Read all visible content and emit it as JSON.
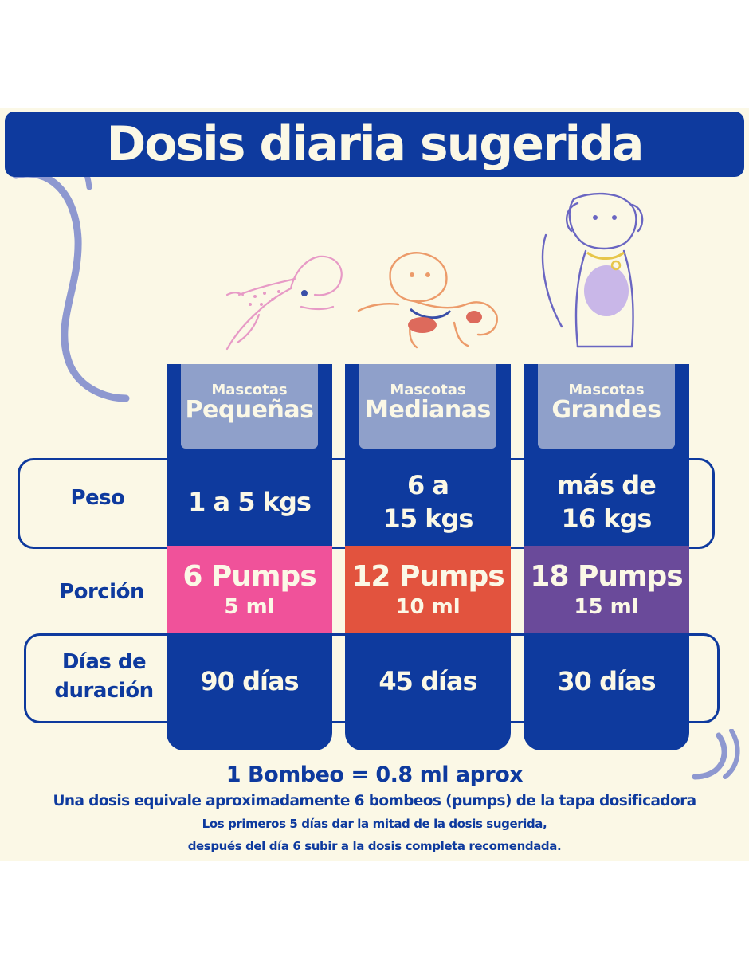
{
  "title": "Dosis diaria sugerida",
  "rows": {
    "weight": "Peso",
    "portion": "Porción",
    "duration_line1": "Días de",
    "duration_line2": "duración"
  },
  "columns": [
    {
      "head_small": "Mascotas",
      "head_big": "Pequeñas",
      "weight_line1": "1 a 5 kgs",
      "weight_line2": "",
      "pumps": "6 Pumps",
      "ml": "5 ml",
      "portion_color": "#f0529a",
      "days": "90 días",
      "dog_icon": "small-dog-jumping"
    },
    {
      "head_small": "Mascotas",
      "head_big": "Medianas",
      "weight_line1": "6 a",
      "weight_line2": "15 kgs",
      "pumps": "12 Pumps",
      "ml": "10 ml",
      "portion_color": "#e2533e",
      "days": "45 días",
      "dog_icon": "medium-dog-bulldog"
    },
    {
      "head_small": "Mascotas",
      "head_big": "Grandes",
      "weight_line1": "más de",
      "weight_line2": "16 kgs",
      "pumps": "18 Pumps",
      "ml": "15 ml",
      "portion_color": "#6a4a9a",
      "days": "30 días",
      "dog_icon": "large-dog-sitting"
    }
  ],
  "footer": {
    "line1": "1 Bombeo = 0.8 ml aprox",
    "line2": "Una dosis equivale aproximadamente 6 bombeos (pumps) de la tapa dosificadora",
    "line3": "Los primeros 5 días dar la mitad de la dosis sugerida,",
    "line4": "después del día 6 subir a la dosis completa recomendada."
  },
  "colors": {
    "navy": "#0e3a9e",
    "background": "#fbf8e6",
    "header_cell": "#8fa0ca",
    "deco_line": "#8e98d0"
  }
}
